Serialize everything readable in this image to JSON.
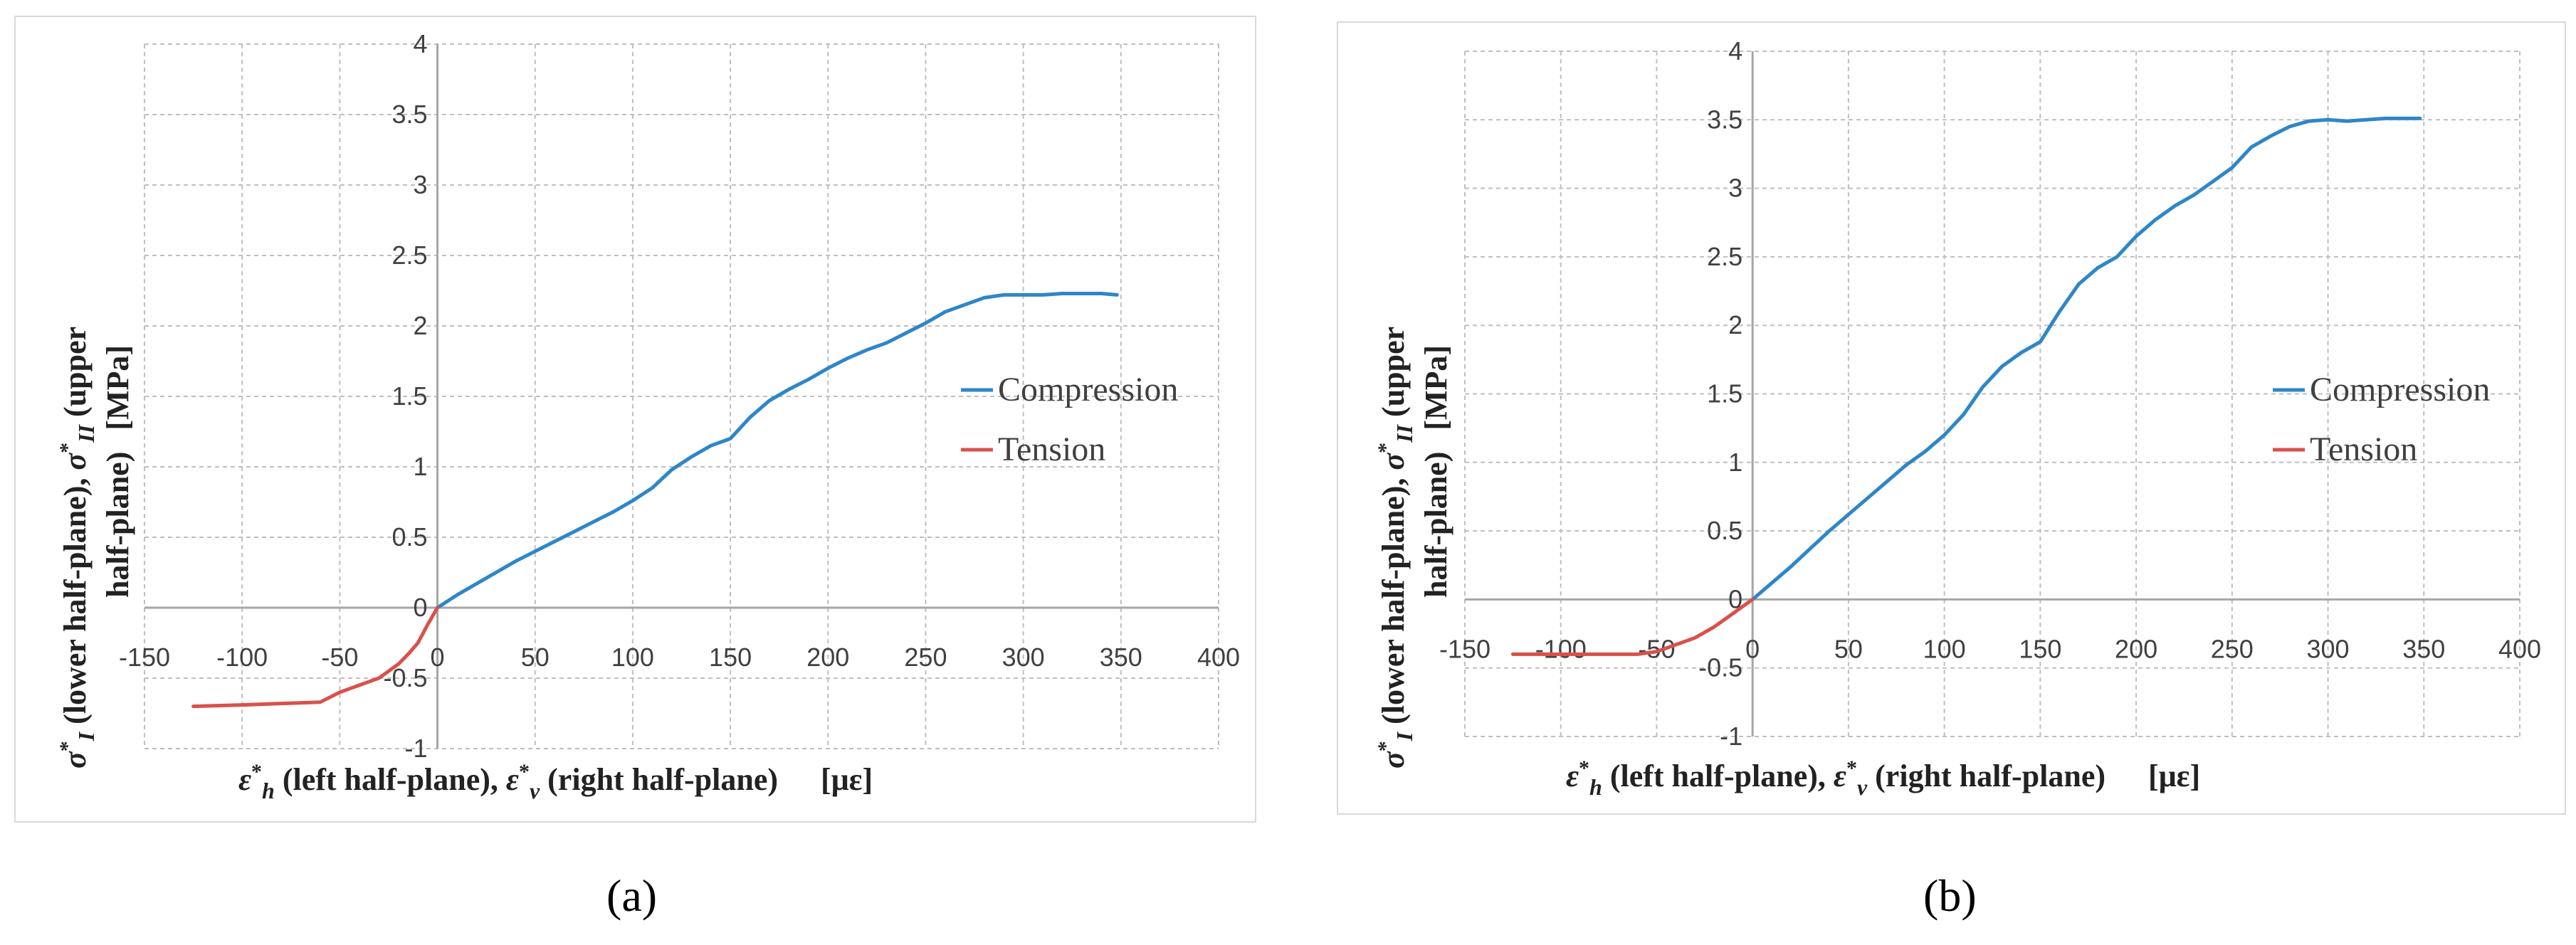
{
  "chart_data": [
    {
      "panel": "(a)",
      "type": "line",
      "xlim": [
        -150,
        400
      ],
      "ylim": [
        -1,
        4
      ],
      "x_ticks": [
        "-150",
        "-100",
        "-50",
        "0",
        "50",
        "100",
        "150",
        "200",
        "250",
        "300",
        "350",
        "400"
      ],
      "y_ticks": [
        "-1",
        "-0.5",
        "0",
        "0.5",
        "1",
        "1.5",
        "2",
        "2.5",
        "3",
        "3.5",
        "4"
      ],
      "xlabel": "ε*h (left half-plane), ε*v (right half-plane)    [με]",
      "ylabel": "σ*I (lower half-plane), σ*II (upper half-plane)   [MPa]",
      "grid": true,
      "legend_position": "right",
      "series": [
        {
          "name": "Compression",
          "color": "#2e86c8",
          "x": [
            0,
            10,
            20,
            30,
            40,
            50,
            60,
            70,
            80,
            90,
            100,
            110,
            120,
            130,
            140,
            150,
            160,
            170,
            180,
            190,
            200,
            210,
            220,
            230,
            240,
            250,
            260,
            270,
            280,
            290,
            300,
            310,
            320,
            330,
            340,
            348
          ],
          "y": [
            0,
            0.09,
            0.17,
            0.25,
            0.33,
            0.4,
            0.47,
            0.54,
            0.61,
            0.68,
            0.76,
            0.85,
            0.98,
            1.07,
            1.15,
            1.2,
            1.35,
            1.47,
            1.55,
            1.62,
            1.7,
            1.77,
            1.83,
            1.88,
            1.95,
            2.02,
            2.1,
            2.15,
            2.2,
            2.22,
            2.22,
            2.22,
            2.23,
            2.23,
            2.23,
            2.22
          ]
        },
        {
          "name": "Tension",
          "color": "#d9514b",
          "x": [
            0,
            -5,
            -10,
            -15,
            -20,
            -25,
            -30,
            -40,
            -50,
            -60,
            -80,
            -100,
            -125
          ],
          "y": [
            0,
            -0.12,
            -0.25,
            -0.33,
            -0.4,
            -0.45,
            -0.5,
            -0.55,
            -0.6,
            -0.67,
            -0.68,
            -0.69,
            -0.7
          ]
        }
      ]
    },
    {
      "panel": "(b)",
      "type": "line",
      "xlim": [
        -150,
        400
      ],
      "ylim": [
        -1,
        4
      ],
      "x_ticks": [
        "-150",
        "-100",
        "-50",
        "0",
        "50",
        "100",
        "150",
        "200",
        "250",
        "300",
        "350",
        "400"
      ],
      "y_ticks": [
        "-1",
        "-0.5",
        "0",
        "0.5",
        "1",
        "1.5",
        "2",
        "2.5",
        "3",
        "3.5",
        "4"
      ],
      "xlabel": "ε*h (left half-plane), ε*v (right half-plane)    [με]",
      "ylabel": "σ*I (lower half-plane), σ*II (upper half-plane)   [MPa]",
      "grid": true,
      "legend_position": "right",
      "series": [
        {
          "name": "Compression",
          "color": "#2e86c8",
          "x": [
            0,
            10,
            20,
            30,
            40,
            50,
            60,
            70,
            80,
            90,
            100,
            110,
            120,
            130,
            140,
            150,
            160,
            170,
            180,
            190,
            200,
            210,
            220,
            230,
            240,
            250,
            260,
            270,
            280,
            290,
            300,
            310,
            320,
            330,
            340,
            348
          ],
          "y": [
            0,
            0.12,
            0.24,
            0.37,
            0.5,
            0.62,
            0.74,
            0.86,
            0.98,
            1.08,
            1.2,
            1.35,
            1.55,
            1.7,
            1.8,
            1.88,
            2.1,
            2.3,
            2.42,
            2.5,
            2.65,
            2.77,
            2.87,
            2.95,
            3.05,
            3.15,
            3.3,
            3.38,
            3.45,
            3.49,
            3.5,
            3.49,
            3.5,
            3.51,
            3.51,
            3.51
          ]
        },
        {
          "name": "Tension",
          "color": "#d9514b",
          "x": [
            0,
            -5,
            -10,
            -15,
            -20,
            -30,
            -40,
            -50,
            -60,
            -80,
            -100,
            -125
          ],
          "y": [
            0,
            -0.05,
            -0.1,
            -0.15,
            -0.2,
            -0.28,
            -0.33,
            -0.38,
            -0.4,
            -0.4,
            -0.4,
            -0.4
          ]
        }
      ]
    }
  ],
  "legend": {
    "compression": "Compression",
    "tension": "Tension"
  },
  "labels": {
    "panel_a": "(a)",
    "panel_b": "(b)",
    "xlabel": {
      "eps": "ε",
      "star": "*",
      "h": "h",
      "left": " (left half-plane), ",
      "v": "v",
      "right": " (right half-plane)",
      "unit": "[με]"
    },
    "ylabel": {
      "sigma": "σ",
      "star": "*",
      "I": "I",
      "lower": " (lower half-plane), ",
      "II": "II",
      "upper": " (upper",
      "line2": "half-plane)",
      "unit": "[MPa]"
    }
  }
}
